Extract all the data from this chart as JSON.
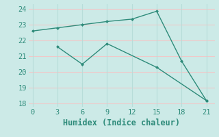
{
  "line1_x": [
    0,
    3,
    6,
    9,
    12,
    15,
    18,
    21
  ],
  "line1_y": [
    22.6,
    22.8,
    23.0,
    23.2,
    23.35,
    23.85,
    20.7,
    18.2
  ],
  "line2_x": [
    3,
    6,
    9,
    15,
    21
  ],
  "line2_y": [
    21.6,
    20.5,
    21.8,
    20.3,
    18.2
  ],
  "color": "#2e8b7a",
  "bg_color": "#cceae7",
  "hgrid_color": "#f0c8c8",
  "vgrid_color": "#b8ddd9",
  "xlabel": "Humidex (Indice chaleur)",
  "xlim": [
    -0.5,
    22
  ],
  "ylim": [
    17.8,
    24.3
  ],
  "xticks": [
    0,
    3,
    6,
    9,
    12,
    15,
    18,
    21
  ],
  "yticks": [
    18,
    19,
    20,
    21,
    22,
    23,
    24
  ],
  "font_size": 7.5,
  "label_font_size": 8.5
}
